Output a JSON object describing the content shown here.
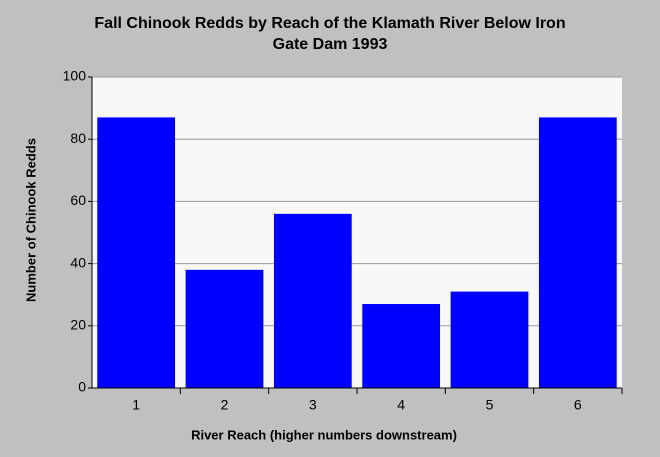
{
  "chart_data": {
    "type": "bar",
    "title": [
      "Fall Chinook Redds by Reach of the Klamath River Below Iron",
      "Gate Dam 1993"
    ],
    "x_label": "River Reach (higher numbers downstream)",
    "y_label": "Number of Chinook Redds",
    "categories": [
      "1",
      "2",
      "3",
      "4",
      "5",
      "6"
    ],
    "values": [
      87,
      38,
      56,
      27,
      31,
      87
    ],
    "color": "#0000ff",
    "ylim": [
      0,
      100
    ],
    "yticks": [
      0,
      20,
      40,
      60,
      80,
      100
    ],
    "grid": true
  }
}
